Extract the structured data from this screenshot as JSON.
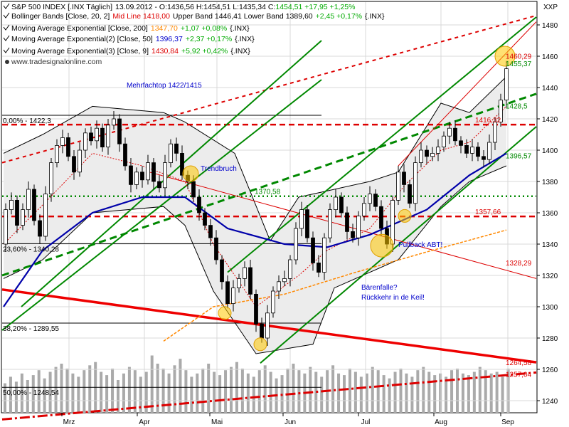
{
  "header": {
    "price_line": {
      "symbol": "S&P 500 INDEX [.INX Täglich]",
      "ohlc": "13.09.2012 - O:1436,56 H:1454,51 L:1435,34 C:",
      "change": "1454,51 +17,95 +1,25%"
    },
    "indicators": [
      {
        "label": "Bollinger Bands [Close, 20, 2]",
        "value": "Mid Line 1418,00",
        "extra": "Upper Band 1446,41 Lower Band 1389,60",
        "change": "+2,45 +0,17%",
        "suffix": "{.INX}",
        "value_color": "#dd0000",
        "change_color": "#00aa00"
      },
      {
        "label": "Moving Average Exponential [Close, 200]",
        "value": "1347,70",
        "extra": "",
        "change": "+1,07 +0,08%",
        "suffix": "{.INX}",
        "value_color": "#ff8800",
        "change_color": "#00aa00"
      },
      {
        "label": "Moving Average Exponential(2) [Close, 50]",
        "value": "1396,37",
        "extra": "",
        "change": "+2,37 +0,17%",
        "suffix": "{.INX}",
        "value_color": "#0000cc",
        "change_color": "#00aa00"
      },
      {
        "label": "Moving Average Exponential(3) [Close, 9]",
        "value": "1430,84",
        "extra": "",
        "change": "+5,92 +0,42%",
        "suffix": "{.INX}",
        "value_color": "#dd0000",
        "change_color": "#00aa00"
      }
    ],
    "source": "www.tradesignalonline.com"
  },
  "chart_data": {
    "type": "candlestick",
    "axis_label": "XXP",
    "y_ticks": [
      1240,
      1260,
      1280,
      1300,
      1320,
      1340,
      1360,
      1380,
      1400,
      1420,
      1440,
      1460,
      1480
    ],
    "ylim": [
      1232,
      1492
    ],
    "month_labels": [
      "Mrz",
      "Apr",
      "Mai",
      "Jun",
      "Jul",
      "Aug",
      "Sep"
    ],
    "fib_levels": [
      {
        "label": "0,00% - 1422,3",
        "value": 1422.3
      },
      {
        "label": "23,60% - 1340,28",
        "value": 1340.28
      },
      {
        "label": "38,20% - 1289,55",
        "value": 1289.55
      },
      {
        "label": "50,00% - 1248,54",
        "value": 1248.54
      }
    ],
    "horizontal_levels": [
      {
        "label": "1416,32",
        "value": 1416.32,
        "color": "#dd0000"
      },
      {
        "label": "1370,58",
        "value": 1370.58,
        "color": "#008800"
      },
      {
        "label": "1357,66",
        "value": 1357.66,
        "color": "#dd0000"
      }
    ],
    "trendline_labels": [
      {
        "label": "1460,29",
        "value": 1460.29,
        "color": "#dd0000"
      },
      {
        "label": "1455,37",
        "value": 1455.37,
        "color": "#008800"
      },
      {
        "label": "1428,5",
        "value": 1428.5,
        "color": "#008800"
      },
      {
        "label": "1396,57",
        "value": 1396.57,
        "color": "#008800"
      },
      {
        "label": "1328,29",
        "value": 1328.29,
        "color": "#dd0000"
      },
      {
        "label": "1264,58",
        "value": 1264.58,
        "color": "#dd0000"
      },
      {
        "label": "1257,04",
        "value": 1257.04,
        "color": "#dd0000"
      }
    ],
    "annotations": [
      {
        "text": "Mehrfachtop 1422/1415",
        "color": "#0000cc"
      },
      {
        "text": "Trendbruch",
        "color": "#0000cc"
      },
      {
        "text": "Pullback ABT!",
        "color": "#0000cc"
      },
      {
        "text": "Bärenfalle?",
        "color": "#0000cc"
      },
      {
        "text": "Rückkehr in de Keil!",
        "color": "#0000cc"
      }
    ],
    "price_path": [
      [
        0,
        1340
      ],
      [
        8,
        1362
      ],
      [
        16,
        1368
      ],
      [
        24,
        1352
      ],
      [
        32,
        1362
      ],
      [
        40,
        1375
      ],
      [
        48,
        1355
      ],
      [
        56,
        1345
      ],
      [
        64,
        1372
      ],
      [
        72,
        1392
      ],
      [
        80,
        1403
      ],
      [
        88,
        1408
      ],
      [
        96,
        1396
      ],
      [
        104,
        1386
      ],
      [
        112,
        1400
      ],
      [
        120,
        1411
      ],
      [
        128,
        1406
      ],
      [
        136,
        1414
      ],
      [
        144,
        1402
      ],
      [
        152,
        1416
      ],
      [
        160,
        1420
      ],
      [
        168,
        1404
      ],
      [
        176,
        1390
      ],
      [
        184,
        1378
      ],
      [
        192,
        1386
      ],
      [
        200,
        1381
      ],
      [
        208,
        1392
      ],
      [
        216,
        1380
      ],
      [
        224,
        1376
      ],
      [
        232,
        1392
      ],
      [
        240,
        1404
      ],
      [
        248,
        1398
      ],
      [
        256,
        1384
      ],
      [
        264,
        1380
      ],
      [
        272,
        1370
      ],
      [
        280,
        1360
      ],
      [
        288,
        1352
      ],
      [
        296,
        1344
      ],
      [
        304,
        1330
      ],
      [
        312,
        1316
      ],
      [
        320,
        1302
      ],
      [
        328,
        1312
      ],
      [
        336,
        1318
      ],
      [
        344,
        1325
      ],
      [
        352,
        1308
      ],
      [
        360,
        1289
      ],
      [
        368,
        1280
      ],
      [
        376,
        1296
      ],
      [
        384,
        1310
      ],
      [
        392,
        1316
      ],
      [
        400,
        1318
      ],
      [
        408,
        1330
      ],
      [
        416,
        1350
      ],
      [
        424,
        1362
      ],
      [
        432,
        1344
      ],
      [
        440,
        1328
      ],
      [
        448,
        1322
      ],
      [
        456,
        1344
      ],
      [
        464,
        1362
      ],
      [
        472,
        1370
      ],
      [
        480,
        1360
      ],
      [
        488,
        1348
      ],
      [
        496,
        1344
      ],
      [
        504,
        1358
      ],
      [
        512,
        1366
      ],
      [
        520,
        1372
      ],
      [
        528,
        1364
      ],
      [
        536,
        1350
      ],
      [
        544,
        1340
      ],
      [
        552,
        1368
      ],
      [
        560,
        1386
      ],
      [
        568,
        1378
      ],
      [
        576,
        1366
      ],
      [
        584,
        1392
      ],
      [
        592,
        1400
      ],
      [
        600,
        1396
      ],
      [
        608,
        1398
      ],
      [
        616,
        1402
      ],
      [
        624,
        1409
      ],
      [
        632,
        1414
      ],
      [
        640,
        1406
      ],
      [
        648,
        1403
      ],
      [
        656,
        1398
      ],
      [
        664,
        1402
      ],
      [
        672,
        1396
      ],
      [
        680,
        1394
      ],
      [
        688,
        1405
      ],
      [
        696,
        1418
      ],
      [
        704,
        1432
      ],
      [
        712,
        1452
      ]
    ],
    "bollinger_upper": [
      [
        5,
        1398
      ],
      [
        60,
        1410
      ],
      [
        130,
        1428
      ],
      [
        230,
        1424
      ],
      [
        260,
        1418
      ],
      [
        330,
        1398
      ],
      [
        380,
        1342
      ],
      [
        420,
        1370
      ],
      [
        460,
        1374
      ],
      [
        520,
        1380
      ],
      [
        560,
        1386
      ],
      [
        620,
        1430
      ],
      [
        660,
        1424
      ],
      [
        712,
        1447
      ]
    ],
    "bollinger_lower": [
      [
        5,
        1318
      ],
      [
        60,
        1330
      ],
      [
        130,
        1360
      ],
      [
        230,
        1364
      ],
      [
        260,
        1352
      ],
      [
        300,
        1310
      ],
      [
        360,
        1270
      ],
      [
        440,
        1276
      ],
      [
        470,
        1312
      ],
      [
        520,
        1322
      ],
      [
        560,
        1330
      ],
      [
        620,
        1364
      ],
      [
        660,
        1380
      ],
      [
        712,
        1390
      ]
    ],
    "ema200": [
      [
        230,
        1278
      ],
      [
        300,
        1300
      ],
      [
        400,
        1308
      ],
      [
        500,
        1322
      ],
      [
        600,
        1335
      ],
      [
        712,
        1349
      ]
    ],
    "ema50": [
      [
        5,
        1300
      ],
      [
        60,
        1336
      ],
      [
        130,
        1360
      ],
      [
        200,
        1370
      ],
      [
        260,
        1370
      ],
      [
        320,
        1350
      ],
      [
        400,
        1340
      ],
      [
        460,
        1338
      ],
      [
        520,
        1346
      ],
      [
        600,
        1362
      ],
      [
        660,
        1384
      ],
      [
        712,
        1398
      ]
    ],
    "ema9": [
      [
        5,
        1340
      ],
      [
        60,
        1365
      ],
      [
        130,
        1398
      ],
      [
        200,
        1390
      ],
      [
        260,
        1380
      ],
      [
        300,
        1340
      ],
      [
        360,
        1300
      ],
      [
        420,
        1320
      ],
      [
        460,
        1336
      ],
      [
        520,
        1350
      ],
      [
        570,
        1378
      ],
      [
        620,
        1400
      ],
      [
        660,
        1405
      ],
      [
        712,
        1428
      ]
    ],
    "volume": [
      18,
      22,
      19,
      24,
      20,
      23,
      26,
      21,
      25,
      28,
      30,
      27,
      24,
      22,
      26,
      29,
      31,
      25,
      23,
      27,
      20,
      24,
      28,
      26,
      22,
      25,
      35,
      30,
      27,
      24,
      29,
      33,
      26,
      22,
      24,
      27,
      30,
      25,
      23,
      26,
      28,
      31,
      27,
      24,
      22,
      26,
      29,
      25,
      21,
      23,
      27,
      30,
      26,
      24,
      28,
      25,
      22,
      26,
      29,
      24,
      23,
      27,
      25,
      22,
      24,
      28,
      26,
      23,
      21,
      25,
      27,
      24,
      22,
      26,
      28,
      25,
      23,
      24,
      22,
      26,
      27,
      24,
      23,
      25,
      28,
      26,
      24,
      25,
      22,
      27
    ]
  }
}
